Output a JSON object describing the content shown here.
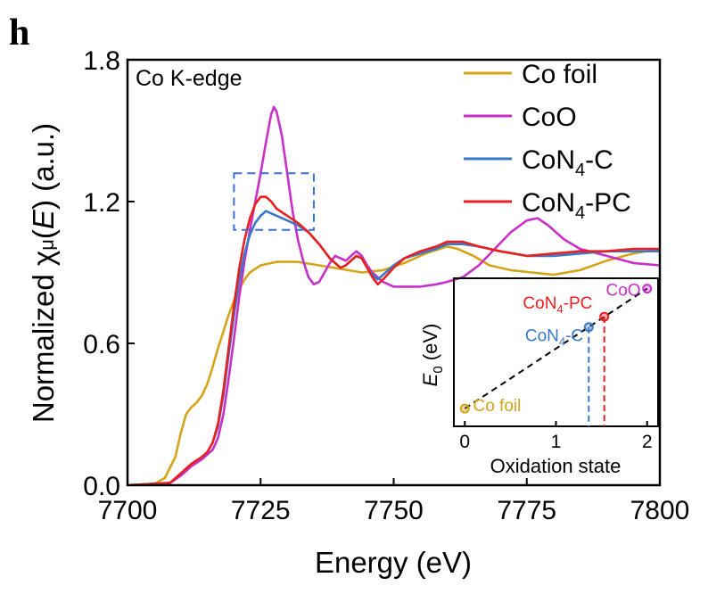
{
  "panel_label": "h",
  "chart_data": {
    "type": "line",
    "title": "Co K-edge",
    "xlabel": "Energy (eV)",
    "ylabel_pre": "Normalized ",
    "ylabel_chi": "χ",
    "ylabel_mu": "μ",
    "ylabel_open": "(",
    "ylabel_E": "E",
    "ylabel_post": ") (a.u.)",
    "xlim": [
      7700,
      7800
    ],
    "ylim": [
      0.0,
      1.8
    ],
    "xticks": [
      "7700",
      "7725",
      "7750",
      "7775",
      "7800"
    ],
    "yticks": [
      "0.0",
      "0.6",
      "1.2",
      "1.8"
    ],
    "xtick_values": [
      7700,
      7725,
      7750,
      7775,
      7800
    ],
    "ytick_values": [
      0.0,
      0.6,
      1.2,
      1.8
    ],
    "series": [
      {
        "name": "Co foil",
        "key": "cofoil",
        "color": "#d4a418",
        "legend": {
          "main": "Co foil",
          "sub": "",
          "tail": ""
        },
        "points": [
          [
            7700,
            0
          ],
          [
            7705,
            0.005
          ],
          [
            7707,
            0.03
          ],
          [
            7709,
            0.12
          ],
          [
            7710,
            0.22
          ],
          [
            7711,
            0.3
          ],
          [
            7712,
            0.33
          ],
          [
            7713,
            0.35
          ],
          [
            7714,
            0.38
          ],
          [
            7715,
            0.43
          ],
          [
            7716,
            0.5
          ],
          [
            7717,
            0.58
          ],
          [
            7718,
            0.65
          ],
          [
            7719,
            0.72
          ],
          [
            7720,
            0.78
          ],
          [
            7721,
            0.83
          ],
          [
            7722,
            0.87
          ],
          [
            7723,
            0.9
          ],
          [
            7725,
            0.93
          ],
          [
            7728,
            0.945
          ],
          [
            7732,
            0.945
          ],
          [
            7736,
            0.93
          ],
          [
            7740,
            0.915
          ],
          [
            7744,
            0.9
          ],
          [
            7748,
            0.91
          ],
          [
            7752,
            0.94
          ],
          [
            7756,
            0.98
          ],
          [
            7760,
            1.01
          ],
          [
            7762,
            1.0
          ],
          [
            7765,
            0.97
          ],
          [
            7768,
            0.93
          ],
          [
            7772,
            0.91
          ],
          [
            7776,
            0.9
          ],
          [
            7780,
            0.89
          ],
          [
            7785,
            0.91
          ],
          [
            7790,
            0.95
          ],
          [
            7795,
            0.98
          ],
          [
            7800,
            1.0
          ]
        ]
      },
      {
        "name": "CoO",
        "key": "coo",
        "color": "#c830c8",
        "legend": {
          "main": "CoO",
          "sub": "",
          "tail": ""
        },
        "points": [
          [
            7700,
            0
          ],
          [
            7708,
            0.01
          ],
          [
            7710,
            0.04
          ],
          [
            7712,
            0.08
          ],
          [
            7714,
            0.11
          ],
          [
            7716,
            0.15
          ],
          [
            7717,
            0.2
          ],
          [
            7718,
            0.3
          ],
          [
            7719,
            0.45
          ],
          [
            7720,
            0.62
          ],
          [
            7721,
            0.8
          ],
          [
            7722,
            0.95
          ],
          [
            7723,
            1.08
          ],
          [
            7724,
            1.2
          ],
          [
            7725,
            1.32
          ],
          [
            7726,
            1.45
          ],
          [
            7727,
            1.57
          ],
          [
            7727.5,
            1.6
          ],
          [
            7728,
            1.58
          ],
          [
            7729,
            1.48
          ],
          [
            7730,
            1.32
          ],
          [
            7731,
            1.16
          ],
          [
            7732,
            1.04
          ],
          [
            7733,
            0.95
          ],
          [
            7734,
            0.88
          ],
          [
            7735,
            0.85
          ],
          [
            7736,
            0.86
          ],
          [
            7737,
            0.9
          ],
          [
            7738,
            0.94
          ],
          [
            7739,
            0.97
          ],
          [
            7740,
            0.96
          ],
          [
            7741,
            0.95
          ],
          [
            7742,
            0.97
          ],
          [
            7743,
            0.99
          ],
          [
            7744,
            0.97
          ],
          [
            7745,
            0.93
          ],
          [
            7746,
            0.9
          ],
          [
            7747,
            0.88
          ],
          [
            7748,
            0.86
          ],
          [
            7750,
            0.84
          ],
          [
            7752,
            0.84
          ],
          [
            7755,
            0.84
          ],
          [
            7758,
            0.85
          ],
          [
            7760,
            0.86
          ],
          [
            7763,
            0.88
          ],
          [
            7766,
            0.93
          ],
          [
            7769,
            1.0
          ],
          [
            7772,
            1.07
          ],
          [
            7775,
            1.12
          ],
          [
            7777,
            1.13
          ],
          [
            7779,
            1.1
          ],
          [
            7782,
            1.04
          ],
          [
            7785,
            1.0
          ],
          [
            7790,
            0.97
          ],
          [
            7795,
            0.94
          ],
          [
            7800,
            0.93
          ]
        ]
      },
      {
        "name": "CoN4-C",
        "key": "con4c",
        "color": "#3a78c8",
        "legend": {
          "main": "CoN",
          "sub": "4",
          "tail": "-C"
        },
        "points": [
          [
            7700,
            0
          ],
          [
            7708,
            0.01
          ],
          [
            7710,
            0.05
          ],
          [
            7712,
            0.09
          ],
          [
            7714,
            0.12
          ],
          [
            7715,
            0.14
          ],
          [
            7716,
            0.18
          ],
          [
            7717,
            0.25
          ],
          [
            7718,
            0.38
          ],
          [
            7719,
            0.55
          ],
          [
            7720,
            0.72
          ],
          [
            7721,
            0.87
          ],
          [
            7722,
            0.98
          ],
          [
            7723,
            1.06
          ],
          [
            7724,
            1.11
          ],
          [
            7725,
            1.14
          ],
          [
            7726,
            1.16
          ],
          [
            7727,
            1.15
          ],
          [
            7728,
            1.14
          ],
          [
            7730,
            1.12
          ],
          [
            7732,
            1.1
          ],
          [
            7734,
            1.07
          ],
          [
            7736,
            1.02
          ],
          [
            7738,
            0.96
          ],
          [
            7740,
            0.92
          ],
          [
            7741,
            0.93
          ],
          [
            7743,
            0.97
          ],
          [
            7744,
            0.96
          ],
          [
            7745,
            0.92
          ],
          [
            7746,
            0.89
          ],
          [
            7747,
            0.87
          ],
          [
            7748,
            0.89
          ],
          [
            7750,
            0.93
          ],
          [
            7752,
            0.96
          ],
          [
            7755,
            0.98
          ],
          [
            7758,
            1.0
          ],
          [
            7760,
            1.02
          ],
          [
            7763,
            1.02
          ],
          [
            7766,
            1.01
          ],
          [
            7770,
            0.99
          ],
          [
            7775,
            0.97
          ],
          [
            7780,
            0.97
          ],
          [
            7785,
            0.98
          ],
          [
            7790,
            0.99
          ],
          [
            7795,
            0.99
          ],
          [
            7800,
            0.99
          ]
        ]
      },
      {
        "name": "CoN4-PC",
        "key": "con4pc",
        "color": "#e82020",
        "legend": {
          "main": "CoN",
          "sub": "4",
          "tail": "-PC"
        },
        "points": [
          [
            7700,
            0
          ],
          [
            7708,
            0.01
          ],
          [
            7710,
            0.05
          ],
          [
            7712,
            0.09
          ],
          [
            7714,
            0.12
          ],
          [
            7715,
            0.14
          ],
          [
            7716,
            0.18
          ],
          [
            7717,
            0.26
          ],
          [
            7718,
            0.4
          ],
          [
            7719,
            0.58
          ],
          [
            7720,
            0.76
          ],
          [
            7721,
            0.92
          ],
          [
            7722,
            1.04
          ],
          [
            7723,
            1.13
          ],
          [
            7724,
            1.19
          ],
          [
            7725,
            1.22
          ],
          [
            7726,
            1.22
          ],
          [
            7727,
            1.2
          ],
          [
            7728,
            1.17
          ],
          [
            7730,
            1.14
          ],
          [
            7732,
            1.11
          ],
          [
            7734,
            1.07
          ],
          [
            7736,
            1.02
          ],
          [
            7738,
            0.96
          ],
          [
            7740,
            0.92
          ],
          [
            7741,
            0.93
          ],
          [
            7743,
            0.97
          ],
          [
            7744,
            0.96
          ],
          [
            7745,
            0.92
          ],
          [
            7746,
            0.88
          ],
          [
            7747,
            0.85
          ],
          [
            7748,
            0.87
          ],
          [
            7750,
            0.92
          ],
          [
            7752,
            0.96
          ],
          [
            7755,
            0.99
          ],
          [
            7758,
            1.01
          ],
          [
            7760,
            1.03
          ],
          [
            7763,
            1.03
          ],
          [
            7766,
            1.01
          ],
          [
            7770,
            0.99
          ],
          [
            7775,
            0.97
          ],
          [
            7780,
            0.98
          ],
          [
            7785,
            0.99
          ],
          [
            7790,
            0.99
          ],
          [
            7795,
            1.0
          ],
          [
            7800,
            1.0
          ]
        ]
      }
    ],
    "highlight_box": {
      "x": [
        7720,
        7735
      ],
      "y": [
        1.08,
        1.32
      ],
      "color": "#3a6fe0"
    },
    "inset": {
      "xlabel": "Oxidation state",
      "ylabel_E": "E",
      "ylabel_sub": "0",
      "ylabel_unit": " (eV)",
      "xlim": [
        -0.12,
        2.12
      ],
      "ylim": [
        0,
        1
      ],
      "xticks": [
        "0",
        "1",
        "2"
      ],
      "xtick_values": [
        0,
        1,
        2
      ],
      "fit_line": [
        [
          0,
          0.12
        ],
        [
          2,
          0.93
        ]
      ],
      "points": [
        {
          "key": "cofoil",
          "x": 0.0,
          "y": 0.12,
          "color": "#d4a418",
          "label_main": "Co foil",
          "label_sub": "",
          "label_tail": "",
          "anchor": "start",
          "dx": 0.09,
          "dy": 0.02
        },
        {
          "key": "con4c",
          "x": 1.36,
          "y": 0.67,
          "color": "#3a78c8",
          "label_main": "CoN",
          "label_sub": "4",
          "label_tail": "-C",
          "anchor": "end",
          "dx": -0.06,
          "dy": -0.06
        },
        {
          "key": "con4pc",
          "x": 1.53,
          "y": 0.74,
          "color": "#e82020",
          "label_main": "CoN",
          "label_sub": "4",
          "label_tail": "-PC",
          "anchor": "end",
          "dx": -0.13,
          "dy": 0.09
        },
        {
          "key": "coo",
          "x": 2.0,
          "y": 0.93,
          "color": "#c830c8",
          "label_main": "CoO",
          "label_sub": "",
          "label_tail": "",
          "anchor": "end",
          "dx": -0.07,
          "dy": -0.01
        }
      ],
      "drop_lines": [
        {
          "x": 1.36,
          "y": 0.67,
          "color": "#3a78c8"
        },
        {
          "x": 1.53,
          "y": 0.74,
          "color": "#e82020"
        }
      ]
    }
  }
}
